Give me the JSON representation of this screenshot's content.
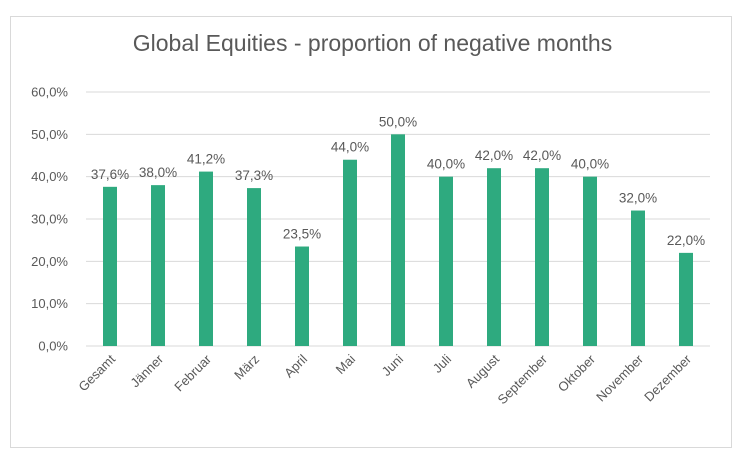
{
  "chart_data": {
    "type": "bar",
    "title": "Global Equities - proportion of negative months",
    "xlabel": "",
    "ylabel": "",
    "categories": [
      "Gesamt",
      "Jänner",
      "Februar",
      "März",
      "April",
      "Mai",
      "Juni",
      "Juli",
      "August",
      "September",
      "Oktober",
      "November",
      "Dezember"
    ],
    "values": [
      37.6,
      38.0,
      41.2,
      37.3,
      23.5,
      44.0,
      50.0,
      40.0,
      42.0,
      42.0,
      40.0,
      32.0,
      22.0
    ],
    "data_labels": [
      "37,6%",
      "38,0%",
      "41,2%",
      "37,3%",
      "23,5%",
      "44,0%",
      "50,0%",
      "40,0%",
      "42,0%",
      "42,0%",
      "40,0%",
      "32,0%",
      "22,0%"
    ],
    "ylim": [
      0,
      60
    ],
    "yticks": [
      0,
      10,
      20,
      30,
      40,
      50,
      60
    ],
    "ytick_labels": [
      "0,0%",
      "10,0%",
      "20,0%",
      "30,0%",
      "40,0%",
      "50,0%",
      "60,0%"
    ],
    "grid": true,
    "legend": "none",
    "colors": {
      "bar": "#2eaa7f",
      "grid": "#d9d9d9",
      "text": "#595959"
    }
  }
}
